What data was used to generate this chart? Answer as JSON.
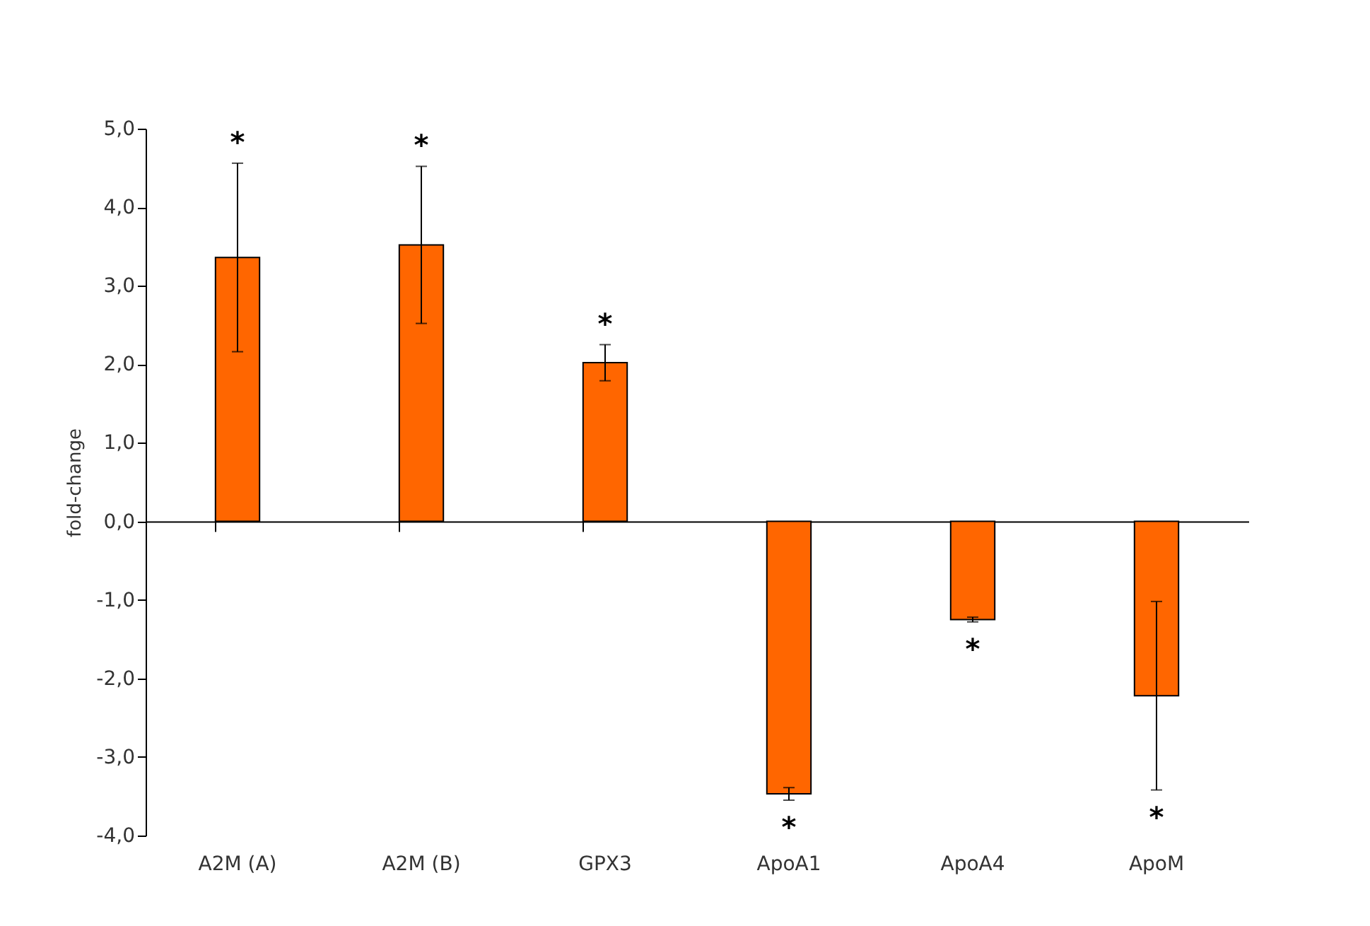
{
  "chart_data": {
    "type": "bar",
    "ylabel": "fold-change",
    "categories": [
      "A2M (A)",
      "A2M (B)",
      "GPX3",
      "ApoA1",
      "ApoA4",
      "ApoM"
    ],
    "values": [
      3.36,
      3.52,
      2.02,
      -3.47,
      -1.25,
      -2.22
    ],
    "errors": [
      1.2,
      1.0,
      0.23,
      0.08,
      0.03,
      1.2
    ],
    "color": "#ff6600",
    "ylim": [
      -4,
      5
    ],
    "yticks": [
      {
        "value": -4,
        "label": "-4,0"
      },
      {
        "value": -3,
        "label": "-3,0"
      },
      {
        "value": -2,
        "label": "-2,0"
      },
      {
        "value": -1,
        "label": "-1,0"
      },
      {
        "value": 0,
        "label": "0,0"
      },
      {
        "value": 1,
        "label": "1,0"
      },
      {
        "value": 2,
        "label": "2,0"
      },
      {
        "value": 3,
        "label": "3,0"
      },
      {
        "value": 4,
        "label": "4,0"
      },
      {
        "value": 5,
        "label": "5,0"
      }
    ],
    "annotations": [
      "*",
      "*",
      "*",
      "*",
      "*",
      "*"
    ]
  }
}
